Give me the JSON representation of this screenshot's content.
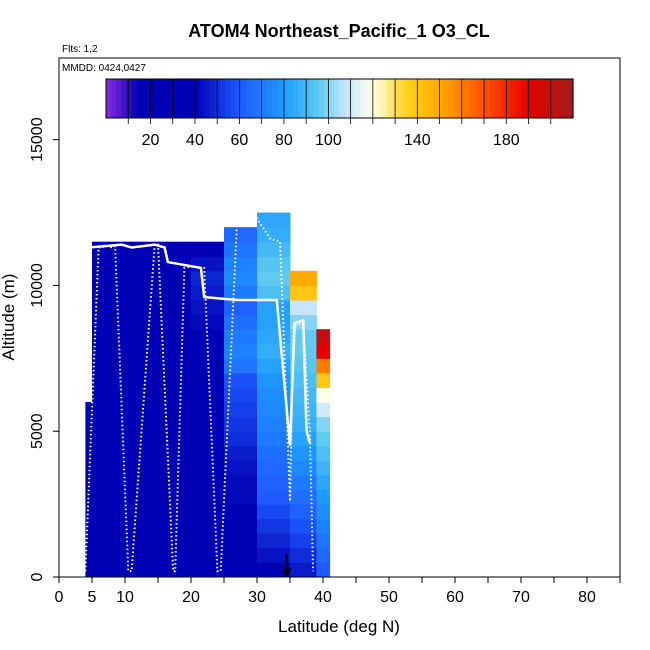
{
  "chart_data": {
    "type": "heatmap",
    "title": "ATOM4 Northeast_Pacific_1 O3_CL",
    "flights_label": "Flts: 1,2",
    "dates_label": "MMDD: 0424,0427",
    "xlabel": "Latitude (deg N)",
    "ylabel": "Altitude (m)",
    "xlim": [
      0,
      85
    ],
    "ylim": [
      0,
      17800
    ],
    "x_ticks": [
      0,
      5,
      10,
      20,
      30,
      40,
      50,
      60,
      70,
      80
    ],
    "y_ticks": [
      0,
      5000,
      10000,
      15000
    ],
    "colorbar": {
      "min": 0,
      "max": 210,
      "tick_labels": [
        20,
        40,
        60,
        80,
        100,
        140,
        180
      ],
      "stops": [
        {
          "v": 0,
          "color": "#8a2be2"
        },
        {
          "v": 15,
          "color": "#0000b4"
        },
        {
          "v": 40,
          "color": "#0000b4"
        },
        {
          "v": 60,
          "color": "#1e5aff"
        },
        {
          "v": 80,
          "color": "#1e9bff"
        },
        {
          "v": 95,
          "color": "#5ac8f0"
        },
        {
          "v": 108,
          "color": "#c8e6ff"
        },
        {
          "v": 120,
          "color": "#ffffe6"
        },
        {
          "v": 135,
          "color": "#ffd21e"
        },
        {
          "v": 150,
          "color": "#ffaa00"
        },
        {
          "v": 170,
          "color": "#ff5000"
        },
        {
          "v": 190,
          "color": "#e60000"
        },
        {
          "v": 210,
          "color": "#a01e1e"
        }
      ]
    },
    "o3_columns": [
      {
        "lat": 4,
        "top": 6000,
        "values": [
          18,
          18,
          20,
          22,
          22,
          24,
          25,
          26,
          26,
          26,
          28,
          28
        ]
      },
      {
        "lat": 5,
        "top": 11500,
        "values": [
          20,
          20,
          22,
          24,
          26,
          26,
          28,
          28,
          30,
          30,
          28,
          28,
          26,
          26,
          26,
          26,
          26,
          28,
          30,
          32,
          30,
          30,
          28
        ]
      },
      {
        "lat": 10,
        "top": 11500,
        "values": [
          28,
          28,
          30,
          30,
          28,
          26,
          28,
          28,
          30,
          30,
          30,
          28,
          26,
          26,
          26,
          28,
          28,
          30,
          30,
          32,
          30,
          30,
          30
        ]
      },
      {
        "lat": 15,
        "top": 11500,
        "values": [
          24,
          22,
          24,
          26,
          26,
          28,
          28,
          28,
          28,
          30,
          30,
          28,
          28,
          28,
          28,
          26,
          26,
          28,
          30,
          30,
          32,
          30,
          30
        ]
      },
      {
        "lat": 20,
        "top": 11500,
        "values": [
          26,
          28,
          30,
          32,
          34,
          36,
          34,
          32,
          30,
          30,
          28,
          28,
          30,
          32,
          34,
          38,
          40,
          42,
          44,
          46,
          48,
          44,
          40
        ]
      },
      {
        "lat": 25,
        "top": 12000,
        "values": [
          32,
          34,
          36,
          38,
          40,
          42,
          42,
          44,
          46,
          50,
          52,
          54,
          56,
          58,
          68,
          72,
          70,
          66,
          62,
          70,
          74,
          72,
          68,
          64
        ]
      },
      {
        "lat": 30,
        "top": 12500,
        "values": [
          40,
          44,
          48,
          52,
          56,
          60,
          62,
          64,
          66,
          70,
          72,
          74,
          76,
          78,
          82,
          86,
          84,
          82,
          82,
          92,
          96,
          94,
          90,
          86,
          84
        ]
      },
      {
        "lat": 35,
        "top": 10500,
        "values": [
          46,
          50,
          54,
          58,
          62,
          66,
          70,
          74,
          78,
          82,
          86,
          88,
          90,
          92,
          94,
          96,
          96,
          100,
          108,
          140,
          150
        ]
      },
      {
        "lat": 39,
        "top": 8500,
        "values": [
          60,
          64,
          68,
          72,
          76,
          80,
          84,
          88,
          92,
          96,
          100,
          110,
          120,
          140,
          160,
          190,
          200
        ]
      }
    ],
    "flight_track": [
      [
        4,
        200
      ],
      [
        6,
        11300
      ],
      [
        7.5,
        11350
      ],
      [
        8,
        11300
      ],
      [
        8.5,
        11350
      ],
      [
        10.5,
        200
      ],
      [
        11,
        200
      ],
      [
        14.5,
        11400
      ],
      [
        15,
        11400
      ],
      [
        17.3,
        200
      ],
      [
        17.6,
        200
      ],
      [
        19,
        10600
      ],
      [
        20,
        10650
      ],
      [
        22,
        10600
      ],
      [
        24,
        200
      ],
      [
        24.5,
        200
      ],
      [
        27,
        12300
      ],
      [
        29,
        12350
      ],
      [
        30,
        12300
      ],
      [
        32,
        11600
      ],
      [
        33.5,
        11500
      ],
      [
        35,
        2600
      ],
      [
        35.5,
        8600
      ],
      [
        37,
        8700
      ],
      [
        38,
        5000
      ],
      [
        38.5,
        200
      ]
    ],
    "mean_profile": [
      [
        4.5,
        11300
      ],
      [
        9.5,
        11400
      ],
      [
        11,
        11300
      ],
      [
        14.5,
        11400
      ],
      [
        16,
        11300
      ],
      [
        16.5,
        10800
      ],
      [
        21.5,
        10600
      ],
      [
        22,
        9600
      ],
      [
        27,
        9500
      ],
      [
        33,
        9500
      ],
      [
        35,
        4500
      ],
      [
        35.7,
        8700
      ],
      [
        37,
        8800
      ],
      [
        37.5,
        5000
      ],
      [
        38,
        4600
      ]
    ],
    "marker": {
      "type": "down-arrow",
      "lat": 34.5,
      "top": 800
    }
  }
}
